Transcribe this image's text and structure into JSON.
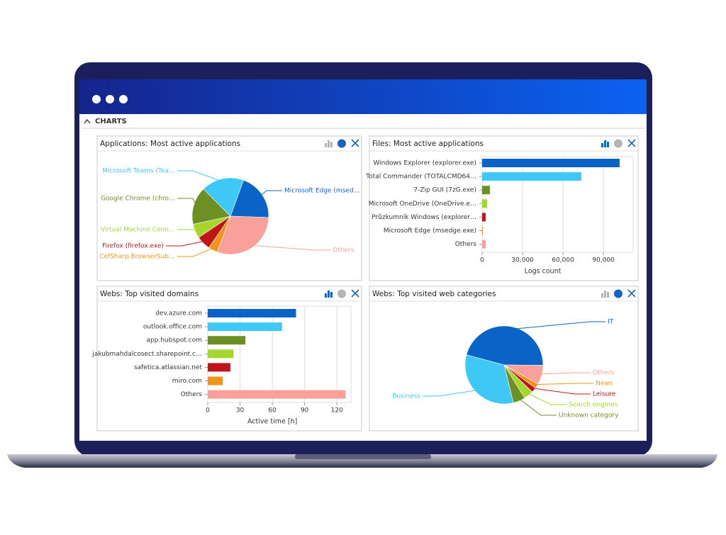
{
  "header": {
    "section": "CHARTS"
  },
  "chart_data": [
    {
      "type": "pie",
      "title": "Applications: Most active applications",
      "categories": [
        "Microsoft Edge (msed…",
        "Others",
        "CefSharp.BrowserSub…",
        "Firefox (firefox.exe)",
        "Virtual Machine Conn…",
        "Google Chrome (chro…",
        "Microsoft Teams (Tea…"
      ],
      "values": [
        20,
        30,
        4,
        6,
        6,
        16,
        18
      ],
      "colors": [
        "#0a64c8",
        "#f9a09a",
        "#f0951a",
        "#c0141a",
        "#a5d62e",
        "#6e8f24",
        "#3fc8f5"
      ]
    },
    {
      "type": "bar",
      "title": "Files: Most active applications",
      "categories": [
        "Windows Explorer (explorer.exe)",
        "Total Commander (TOTALCMD64…",
        "7-Zip GUI (7zG.exe)",
        "Microsoft OneDrive (OneDrive.e…",
        "Průzkumník Windows (explorer…",
        "Microsoft Edge (msedge.exe)",
        "Others"
      ],
      "values": [
        102000,
        73600,
        5800,
        3700,
        2600,
        500,
        2600
      ],
      "colors": [
        "#0a64c8",
        "#3fc8f5",
        "#6e8f24",
        "#a5d62e",
        "#c0141a",
        "#f0951a",
        "#f9a09a"
      ],
      "xlabel": "Logs count",
      "xlim": [
        0,
        112000
      ],
      "xticks": [
        0,
        {
          "value": 30000,
          "label": "30,000"
        },
        {
          "value": 60000,
          "label": "60,000"
        },
        {
          "value": 90000,
          "label": "90,000"
        }
      ],
      "grid": true
    },
    {
      "type": "bar",
      "title": "Webs: Top visited domains",
      "categories": [
        "dev.azure.com",
        "outlook.office.com",
        "app.hubspot.com",
        "jakubmahdalcosect.sharepoint.c…",
        "safetica.atlassian.net",
        "miro.com",
        "Others"
      ],
      "values": [
        82,
        69,
        35,
        24,
        21,
        14,
        128
      ],
      "colors": [
        "#0a64c8",
        "#3fc8f5",
        "#6e8f24",
        "#a5d62e",
        "#c0141a",
        "#f0951a",
        "#f9a09a"
      ],
      "xlabel": "Active time [h]",
      "xlim": [
        0,
        133
      ],
      "xticks": [
        0,
        30,
        60,
        90,
        120
      ],
      "grid": true
    },
    {
      "type": "pie",
      "title": "Webs: Top visited web categories",
      "categories": [
        "IT",
        "Others",
        "News",
        "Leisure",
        "Search engines",
        "Unknown category",
        "Business"
      ],
      "values": [
        46,
        8,
        2,
        2,
        4,
        5,
        33
      ],
      "colors": [
        "#0a64c8",
        "#f9a09a",
        "#f0951a",
        "#c0141a",
        "#a5d62e",
        "#6e8f24",
        "#3fc8f5"
      ]
    }
  ]
}
